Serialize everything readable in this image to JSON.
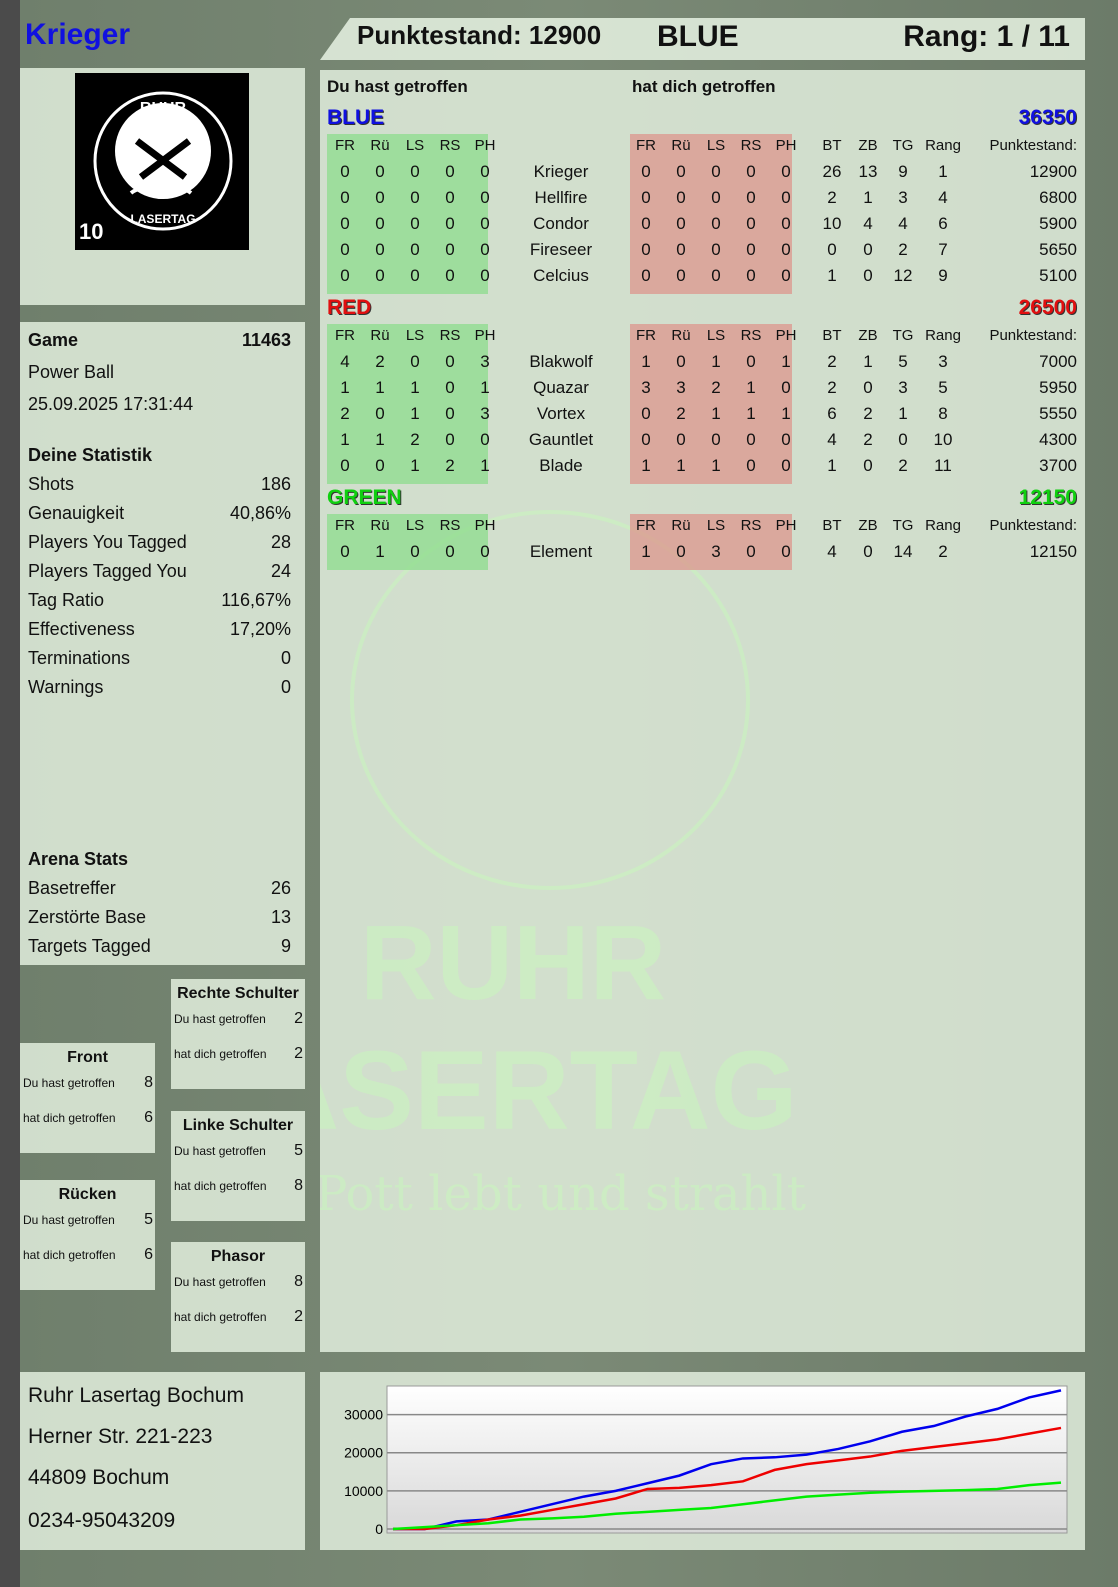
{
  "player": {
    "name": "Krieger",
    "score_label": "Punktestand: 12900",
    "team": "BLUE",
    "rank_label": "Rang: 1 / 11"
  },
  "logo": {
    "top_text": "RUHR",
    "bottom_text": "LASERTAG",
    "number": "10"
  },
  "watermark": {
    "line1": "RUHR",
    "line2": "LASERTAG",
    "slogan": "Der Pott lebt und strahlt"
  },
  "game": {
    "label": "Game",
    "id": "11463",
    "mode": "Power Ball",
    "datetime": "25.09.2025 17:31:44"
  },
  "stats": {
    "title": "Deine Statistik",
    "rows": [
      {
        "label": "Shots",
        "value": "186"
      },
      {
        "label": "Genauigkeit",
        "value": "40,86%"
      },
      {
        "label": "Players You Tagged",
        "value": "28"
      },
      {
        "label": "Players Tagged You",
        "value": "24"
      },
      {
        "label": "Tag Ratio",
        "value": "116,67%"
      },
      {
        "label": "Effectiveness",
        "value": "17,20%"
      },
      {
        "label": "Terminations",
        "value": "0"
      },
      {
        "label": "Warnings",
        "value": "0"
      }
    ]
  },
  "arena": {
    "title": "Arena Stats",
    "rows": [
      {
        "label": "Basetreffer",
        "value": "26"
      },
      {
        "label": "Zerstörte Base",
        "value": "13"
      },
      {
        "label": "Targets Tagged",
        "value": "9"
      }
    ]
  },
  "zones": [
    {
      "title": "Rechte Schulter",
      "hit_label": "Du hast getroffen",
      "hit": "2",
      "got_label": "hat dich getroffen",
      "got": "2"
    },
    {
      "title": "Front",
      "hit_label": "Du hast getroffen",
      "hit": "8",
      "got_label": "hat dich getroffen",
      "got": "6"
    },
    {
      "title": "Linke Schulter",
      "hit_label": "Du hast getroffen",
      "hit": "5",
      "got_label": "hat dich getroffen",
      "got": "8"
    },
    {
      "title": "Rücken",
      "hit_label": "Du hast getroffen",
      "hit": "5",
      "got_label": "hat dich getroffen",
      "got": "6"
    },
    {
      "title": "Phasor",
      "hit_label": "Du hast getroffen",
      "hit": "8",
      "got_label": "hat dich getroffen",
      "got": "2"
    }
  ],
  "address": [
    "Ruhr Lasertag Bochum",
    "Herner Str. 221-223",
    "44809 Bochum",
    "0234-95043209"
  ],
  "scoreboard": {
    "you_hit": "Du hast getroffen",
    "hit_you": "hat dich getroffen",
    "zone_cols": [
      "FR",
      "Rü",
      "LS",
      "RS",
      "PH"
    ],
    "stat_cols": [
      "BT",
      "ZB",
      "TG",
      "Rang"
    ],
    "score_col": "Punktestand:",
    "teams": [
      {
        "name": "BLUE",
        "total": "36350",
        "color": "#1010e0",
        "players": [
          {
            "name": "Krieger",
            "hit": [
              "0",
              "0",
              "0",
              "0",
              "0"
            ],
            "got": [
              "0",
              "0",
              "0",
              "0",
              "0"
            ],
            "stats": [
              "26",
              "13",
              "9",
              "1"
            ],
            "score": "12900"
          },
          {
            "name": "Hellfire",
            "hit": [
              "0",
              "0",
              "0",
              "0",
              "0"
            ],
            "got": [
              "0",
              "0",
              "0",
              "0",
              "0"
            ],
            "stats": [
              "2",
              "1",
              "3",
              "4"
            ],
            "score": "6800"
          },
          {
            "name": "Condor",
            "hit": [
              "0",
              "0",
              "0",
              "0",
              "0"
            ],
            "got": [
              "0",
              "0",
              "0",
              "0",
              "0"
            ],
            "stats": [
              "10",
              "4",
              "4",
              "6"
            ],
            "score": "5900"
          },
          {
            "name": "Fireseer",
            "hit": [
              "0",
              "0",
              "0",
              "0",
              "0"
            ],
            "got": [
              "0",
              "0",
              "0",
              "0",
              "0"
            ],
            "stats": [
              "0",
              "0",
              "2",
              "7"
            ],
            "score": "5650"
          },
          {
            "name": "Celcius",
            "hit": [
              "0",
              "0",
              "0",
              "0",
              "0"
            ],
            "got": [
              "0",
              "0",
              "0",
              "0",
              "0"
            ],
            "stats": [
              "1",
              "0",
              "12",
              "9"
            ],
            "score": "5100"
          }
        ]
      },
      {
        "name": "RED",
        "total": "26500",
        "color": "#e01010",
        "players": [
          {
            "name": "Blakwolf",
            "hit": [
              "4",
              "2",
              "0",
              "0",
              "3"
            ],
            "got": [
              "1",
              "0",
              "1",
              "0",
              "1"
            ],
            "stats": [
              "2",
              "1",
              "5",
              "3"
            ],
            "score": "7000"
          },
          {
            "name": "Quazar",
            "hit": [
              "1",
              "1",
              "1",
              "0",
              "1"
            ],
            "got": [
              "3",
              "3",
              "2",
              "1",
              "0"
            ],
            "stats": [
              "2",
              "0",
              "3",
              "5"
            ],
            "score": "5950"
          },
          {
            "name": "Vortex",
            "hit": [
              "2",
              "0",
              "1",
              "0",
              "3"
            ],
            "got": [
              "0",
              "2",
              "1",
              "1",
              "1"
            ],
            "stats": [
              "6",
              "2",
              "1",
              "8"
            ],
            "score": "5550"
          },
          {
            "name": "Gauntlet",
            "hit": [
              "1",
              "1",
              "2",
              "0",
              "0"
            ],
            "got": [
              "0",
              "0",
              "0",
              "0",
              "0"
            ],
            "stats": [
              "4",
              "2",
              "0",
              "10"
            ],
            "score": "4300"
          },
          {
            "name": "Blade",
            "hit": [
              "0",
              "0",
              "1",
              "2",
              "1"
            ],
            "got": [
              "1",
              "1",
              "1",
              "0",
              "0"
            ],
            "stats": [
              "1",
              "0",
              "2",
              "11"
            ],
            "score": "3700"
          }
        ]
      },
      {
        "name": "GREEN",
        "total": "12150",
        "color": "#10d010",
        "players": [
          {
            "name": "Element",
            "hit": [
              "0",
              "1",
              "0",
              "0",
              "0"
            ],
            "got": [
              "1",
              "0",
              "3",
              "0",
              "0"
            ],
            "stats": [
              "4",
              "0",
              "14",
              "2"
            ],
            "score": "12150"
          }
        ]
      }
    ]
  },
  "chart_data": {
    "type": "line",
    "ylim": [
      0,
      37500
    ],
    "yticks": [
      "0",
      "10000",
      "20000",
      "30000"
    ],
    "grid": true,
    "x": [
      0,
      1,
      2,
      3,
      4,
      5,
      6,
      7,
      8,
      9,
      10,
      11,
      12,
      13,
      14,
      15,
      16,
      17,
      18,
      19,
      20,
      21
    ],
    "series": [
      {
        "color": "#0000ee",
        "values": [
          0,
          0,
          2000,
          2500,
          4500,
          6500,
          8500,
          10000,
          12000,
          14000,
          17000,
          18500,
          18800,
          19500,
          21000,
          23000,
          25500,
          27000,
          29500,
          31500,
          34500,
          36350
        ]
      },
      {
        "color": "#ee0000",
        "values": [
          0,
          0,
          1000,
          2500,
          3500,
          5000,
          6500,
          8000,
          10500,
          10800,
          11500,
          12500,
          15500,
          17000,
          18000,
          19000,
          20500,
          21500,
          22500,
          23500,
          25000,
          26500
        ]
      },
      {
        "color": "#00ee00",
        "values": [
          0,
          500,
          1000,
          1500,
          2500,
          2800,
          3200,
          4000,
          4500,
          5000,
          5500,
          6500,
          7500,
          8500,
          9000,
          9500,
          9800,
          10000,
          10200,
          10500,
          11500,
          12150
        ]
      }
    ]
  }
}
